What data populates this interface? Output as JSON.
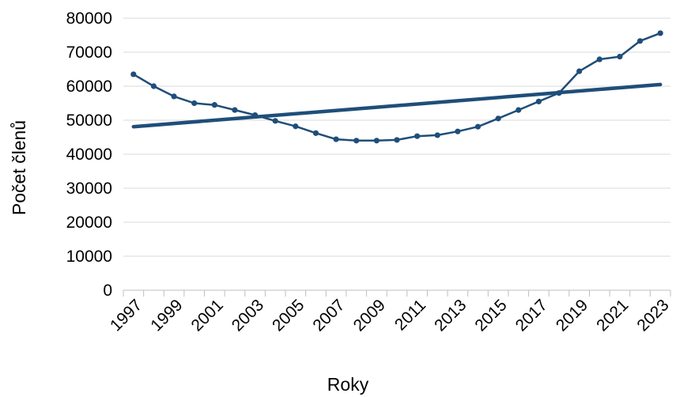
{
  "chart_data": {
    "type": "line",
    "title": "",
    "xlabel": "Roky",
    "ylabel": "Počet členů",
    "xlim": [
      1997,
      2023
    ],
    "ylim": [
      0,
      80000
    ],
    "y_ticks": [
      0,
      10000,
      20000,
      30000,
      40000,
      50000,
      60000,
      70000,
      80000
    ],
    "x_tick_labels": [
      "1997",
      "1999",
      "2001",
      "2003",
      "2005",
      "2007",
      "2009",
      "2011",
      "2013",
      "2015",
      "2017",
      "2019",
      "2021",
      "2023"
    ],
    "grid": "horizontal",
    "legend": "none",
    "series": [
      {
        "kind": "line-with-markers",
        "color": "#1f4e79",
        "x": [
          1997,
          1998,
          1999,
          2000,
          2001,
          2002,
          2003,
          2004,
          2005,
          2006,
          2007,
          2008,
          2009,
          2010,
          2011,
          2012,
          2013,
          2014,
          2015,
          2016,
          2017,
          2018,
          2019,
          2020,
          2021,
          2022,
          2023
        ],
        "values": [
          63500,
          60000,
          57000,
          55000,
          54500,
          53000,
          51500,
          49800,
          48200,
          46200,
          44400,
          44000,
          44000,
          44200,
          45300,
          45600,
          46700,
          48100,
          50500,
          53000,
          55500,
          58000,
          64400,
          67900,
          68700,
          73300,
          75600
        ]
      },
      {
        "kind": "trendline",
        "color": "#1f4e79",
        "x": [
          1997,
          2023
        ],
        "values": [
          48100,
          60500
        ]
      }
    ]
  }
}
